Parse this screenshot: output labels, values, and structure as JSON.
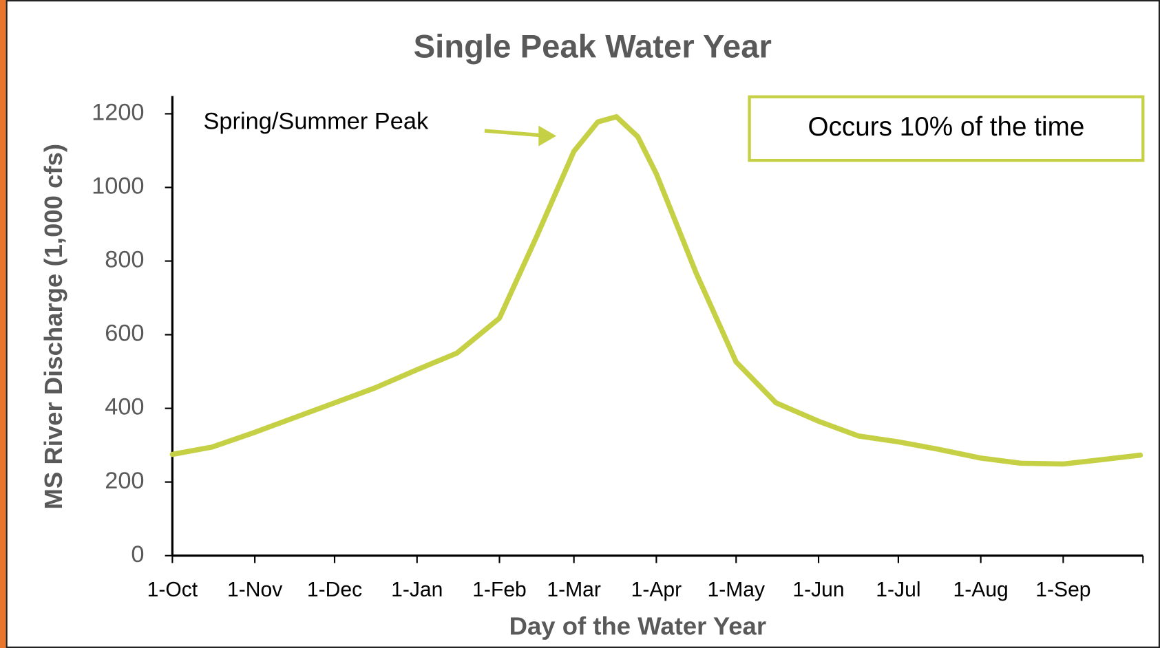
{
  "chart_data": {
    "type": "line",
    "title": "Single Peak Water Year",
    "x_label": "Day of the Water Year",
    "y_label": "MS River Discharge (1,000 cfs)",
    "annotations": [
      "Spring/Summer Peak",
      "Occurs 10% of the time"
    ],
    "x": [
      0,
      15,
      31,
      46,
      61,
      76,
      92,
      107,
      123,
      137,
      151,
      160,
      167,
      175,
      182,
      197,
      212,
      227,
      243,
      258,
      273,
      288,
      304,
      319,
      335,
      350,
      364
    ],
    "series": [
      {
        "name": "Discharge",
        "color": "#c5d044",
        "values": [
          275,
          295,
          335,
          375,
          415,
          455,
          505,
          550,
          645,
          867,
          1098,
          1178,
          1192,
          1138,
          1037,
          767,
          526,
          415,
          365,
          325,
          309,
          289,
          265,
          251,
          249,
          261,
          273
        ]
      }
    ],
    "xlim": [
      0,
      365
    ],
    "xticks": [
      {
        "value": 0,
        "label": "1-Oct"
      },
      {
        "value": 31,
        "label": "1-Nov"
      },
      {
        "value": 61,
        "label": "1-Dec"
      },
      {
        "value": 92,
        "label": "1-Jan"
      },
      {
        "value": 123,
        "label": "1-Feb"
      },
      {
        "value": 151,
        "label": "1-Mar"
      },
      {
        "value": 182,
        "label": "1-Apr"
      },
      {
        "value": 212,
        "label": "1-May"
      },
      {
        "value": 243,
        "label": "1-Jun"
      },
      {
        "value": 273,
        "label": "1-Jul"
      },
      {
        "value": 304,
        "label": "1-Aug"
      },
      {
        "value": 335,
        "label": "1-Sep"
      }
    ],
    "ylim": [
      0,
      1200
    ],
    "yticks": [
      0,
      200,
      400,
      600,
      800,
      1000,
      1200
    ],
    "grid": false
  }
}
